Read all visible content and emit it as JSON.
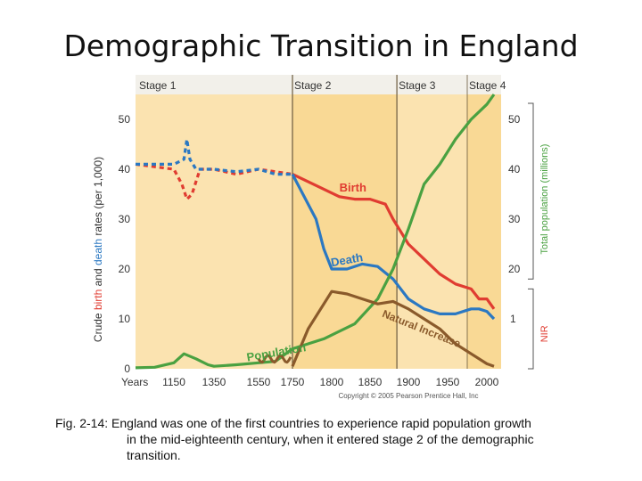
{
  "slide": {
    "title": "Demographic Transition in England",
    "caption_lead": "Fig. 2-14: England was one of the first countries to experience rapid population growth",
    "caption_rest": "in the mid-eighteenth century, when it entered stage 2 of the demographic transition."
  },
  "chart_data": {
    "type": "line",
    "stages": [
      "Stage 1",
      "Stage 2",
      "Stage 3",
      "Stage 4"
    ],
    "x_tick_lead": "Years",
    "x_ticks": [
      "1150",
      "1350",
      "1550",
      "1750",
      "1800",
      "1850",
      "1900",
      "1950",
      "2000"
    ],
    "left_axis": {
      "label_parts": [
        "Crude ",
        "birth",
        " and ",
        "death",
        " rates (per 1,000)"
      ],
      "ticks": [
        0,
        10,
        20,
        30,
        40,
        50
      ],
      "ylim": [
        0,
        55
      ]
    },
    "right_axis": {
      "label_top": "Total population (millions)",
      "ticks": [
        20,
        30,
        40,
        50
      ],
      "label_bottom": "NIR",
      "extra_ticks": [
        "1"
      ]
    },
    "series": [
      {
        "name": "Birth",
        "color": "#e03c31",
        "points": [
          [
            1050,
            41
          ],
          [
            1150,
            40
          ],
          [
            1190,
            37
          ],
          [
            1215,
            34
          ],
          [
            1240,
            35
          ],
          [
            1280,
            40
          ],
          [
            1350,
            40
          ],
          [
            1450,
            39
          ],
          [
            1550,
            40
          ],
          [
            1650,
            39.5
          ],
          [
            1750,
            39
          ],
          [
            1790,
            36
          ],
          [
            1810,
            34.5
          ],
          [
            1830,
            34
          ],
          [
            1850,
            34
          ],
          [
            1870,
            33
          ],
          [
            1880,
            30
          ],
          [
            1900,
            25
          ],
          [
            1920,
            22
          ],
          [
            1940,
            19
          ],
          [
            1960,
            17
          ],
          [
            1980,
            16
          ],
          [
            1990,
            14
          ],
          [
            2000,
            14
          ],
          [
            2010,
            12
          ]
        ]
      },
      {
        "name": "Death",
        "color": "#2b78c2",
        "points": [
          [
            1050,
            41
          ],
          [
            1150,
            41
          ],
          [
            1200,
            42
          ],
          [
            1215,
            46
          ],
          [
            1230,
            42
          ],
          [
            1260,
            40
          ],
          [
            1350,
            40
          ],
          [
            1450,
            39.5
          ],
          [
            1550,
            40
          ],
          [
            1650,
            39
          ],
          [
            1750,
            39
          ],
          [
            1780,
            30
          ],
          [
            1790,
            24
          ],
          [
            1800,
            20
          ],
          [
            1820,
            20
          ],
          [
            1840,
            21
          ],
          [
            1860,
            20.5
          ],
          [
            1880,
            18
          ],
          [
            1900,
            14
          ],
          [
            1920,
            12
          ],
          [
            1940,
            11
          ],
          [
            1960,
            11
          ],
          [
            1980,
            12
          ],
          [
            1990,
            12
          ],
          [
            2000,
            11.5
          ],
          [
            2010,
            10
          ]
        ]
      },
      {
        "name": "Population",
        "color": "#4aa141",
        "points": [
          [
            1050,
            0.2
          ],
          [
            1100,
            0.3
          ],
          [
            1150,
            1.2
          ],
          [
            1200,
            3
          ],
          [
            1260,
            2
          ],
          [
            1320,
            0.8
          ],
          [
            1350,
            0.5
          ],
          [
            1450,
            0.8
          ],
          [
            1550,
            1.2
          ],
          [
            1650,
            1.5
          ],
          [
            1750,
            4
          ],
          [
            1790,
            6
          ],
          [
            1830,
            9
          ],
          [
            1860,
            14
          ],
          [
            1880,
            20
          ],
          [
            1900,
            28
          ],
          [
            1920,
            37
          ],
          [
            1940,
            41
          ],
          [
            1960,
            46
          ],
          [
            1980,
            50
          ],
          [
            2000,
            53
          ],
          [
            2010,
            55
          ]
        ]
      },
      {
        "name": "Natural Increase",
        "color": "#8a5a2b",
        "points": [
          [
            1550,
            0.5
          ],
          [
            1650,
            0.5
          ],
          [
            1750,
            0.5
          ],
          [
            1770,
            8
          ],
          [
            1790,
            13
          ],
          [
            1800,
            15.5
          ],
          [
            1820,
            15
          ],
          [
            1840,
            14
          ],
          [
            1860,
            13
          ],
          [
            1880,
            13.5
          ],
          [
            1900,
            12
          ],
          [
            1920,
            10
          ],
          [
            1940,
            8
          ],
          [
            1960,
            5
          ],
          [
            1980,
            3
          ],
          [
            2000,
            1
          ],
          [
            2010,
            0.5
          ]
        ]
      }
    ],
    "curve_labels": [
      "Birth",
      "Death",
      "Population",
      "Natural Increase"
    ],
    "copyright": "Copyright © 2005 Pearson Prentice Hall, Inc"
  }
}
